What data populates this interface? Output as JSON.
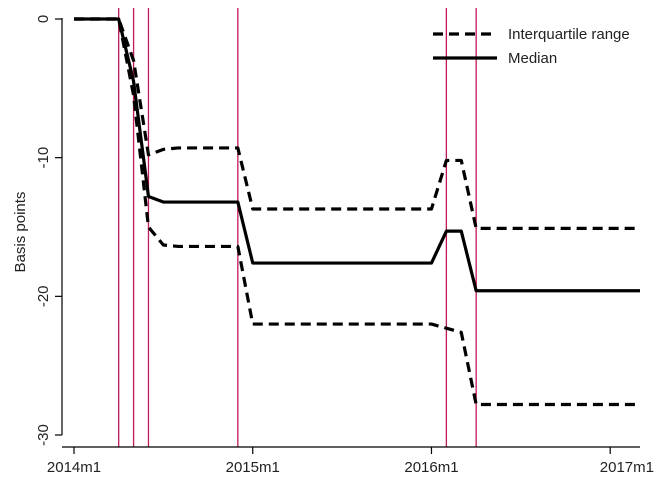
{
  "chart_data": {
    "type": "line",
    "title": "",
    "xlabel": "",
    "ylabel": "Basis points",
    "xlim": [
      0,
      38
    ],
    "ylim": [
      -30,
      0
    ],
    "x_ticks": [
      {
        "label": "2014m1",
        "value": 0
      },
      {
        "label": "2015m1",
        "value": 12
      },
      {
        "label": "2016m1",
        "value": 24
      },
      {
        "label": "2017m1",
        "value": 36
      }
    ],
    "y_ticks": [
      {
        "label": "0",
        "value": 0
      },
      {
        "label": "-10",
        "value": -10
      },
      {
        "label": "-20",
        "value": -20
      },
      {
        "label": "-30",
        "value": -30
      }
    ],
    "vlines": {
      "color": "#c2185b",
      "x": [
        3,
        4,
        5,
        11,
        25,
        27
      ]
    },
    "legend": {
      "position": "top-right"
    },
    "grid": false,
    "series": [
      {
        "name": "Interquartile range",
        "style": "dashed",
        "color": "#000000",
        "x": [
          0,
          3,
          4,
          5,
          6,
          7,
          11,
          12,
          24,
          25,
          26,
          27,
          28,
          38
        ],
        "y": [
          0,
          0,
          -3,
          -9.8,
          -9.4,
          -9.3,
          -9.3,
          -13.7,
          -13.7,
          -10.2,
          -10.2,
          -15.1,
          -15.1,
          -15.1
        ]
      },
      {
        "name": "Median",
        "style": "solid",
        "color": "#000000",
        "x": [
          0,
          3,
          4,
          5,
          6,
          11,
          12,
          24,
          25,
          26,
          27,
          38
        ],
        "y": [
          0,
          0,
          -4.5,
          -12.8,
          -13.2,
          -13.2,
          -17.6,
          -17.6,
          -15.3,
          -15.3,
          -19.6,
          -19.6
        ]
      },
      {
        "name": "Interquartile range",
        "style": "dashed",
        "color": "#000000",
        "x": [
          0,
          3,
          4,
          5,
          6,
          7,
          11,
          12,
          24,
          25,
          26,
          27,
          28,
          38
        ],
        "y": [
          0,
          0,
          -5.5,
          -15,
          -16.3,
          -16.4,
          -16.4,
          -22,
          -22,
          -22.3,
          -22.6,
          -27.8,
          -27.8,
          -27.8
        ]
      }
    ]
  }
}
